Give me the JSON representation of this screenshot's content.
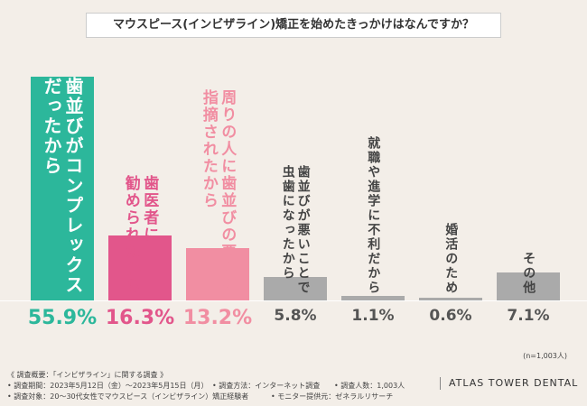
{
  "chart_data": {
    "type": "bar",
    "title": "マウスピース(インビザライン)矯正を始めたきっかけはなんですか？",
    "categories": [
      "歯並びがコンプレックス\nだったから",
      "歯医者に\n勧められたから",
      "周りの人に歯並びの悪さを\n指摘されたから",
      "歯並びが悪いことで\n虫歯になったから",
      "就職や進学に不利だから",
      "婚活のため",
      "その他"
    ],
    "values": [
      55.9,
      16.3,
      13.2,
      5.8,
      1.1,
      0.6,
      7.1
    ],
    "value_labels": [
      "55.9%",
      "16.3%",
      "13.2%",
      "5.8%",
      "1.1%",
      "0.6%",
      "7.1%"
    ],
    "colors": [
      "#2cb79b",
      "#e2568b",
      "#f18ea2",
      "#aaaaaa",
      "#aaaaaa",
      "#aaaaaa",
      "#aaaaaa"
    ],
    "label_colors": [
      "#ffffff",
      "#e2568b",
      "#f18ea2",
      "#444444",
      "#444444",
      "#444444",
      "#444444"
    ],
    "value_label_colors": [
      "#2cb79b",
      "#e2568b",
      "#f18ea2",
      "#555555",
      "#555555",
      "#555555",
      "#555555"
    ],
    "ylim": [
      0,
      56
    ],
    "sample_note": "(n=1,003人)"
  },
  "footer": {
    "heading": "《 調査概要：「インビザライン」に関する調査 》",
    "period": "• 調査期間：2023年5月12日（金）～2023年5月15日（月）",
    "method": "• 調査方法：インターネット調査",
    "count": "• 調査人数：1,003人",
    "target": "• 調査対象：20～30代女性でマウスピース（インビザライン）矯正経験者",
    "provider": "• モニター提供元：ゼネラルリサーチ",
    "brand": "ATLAS TOWER DENTAL"
  }
}
